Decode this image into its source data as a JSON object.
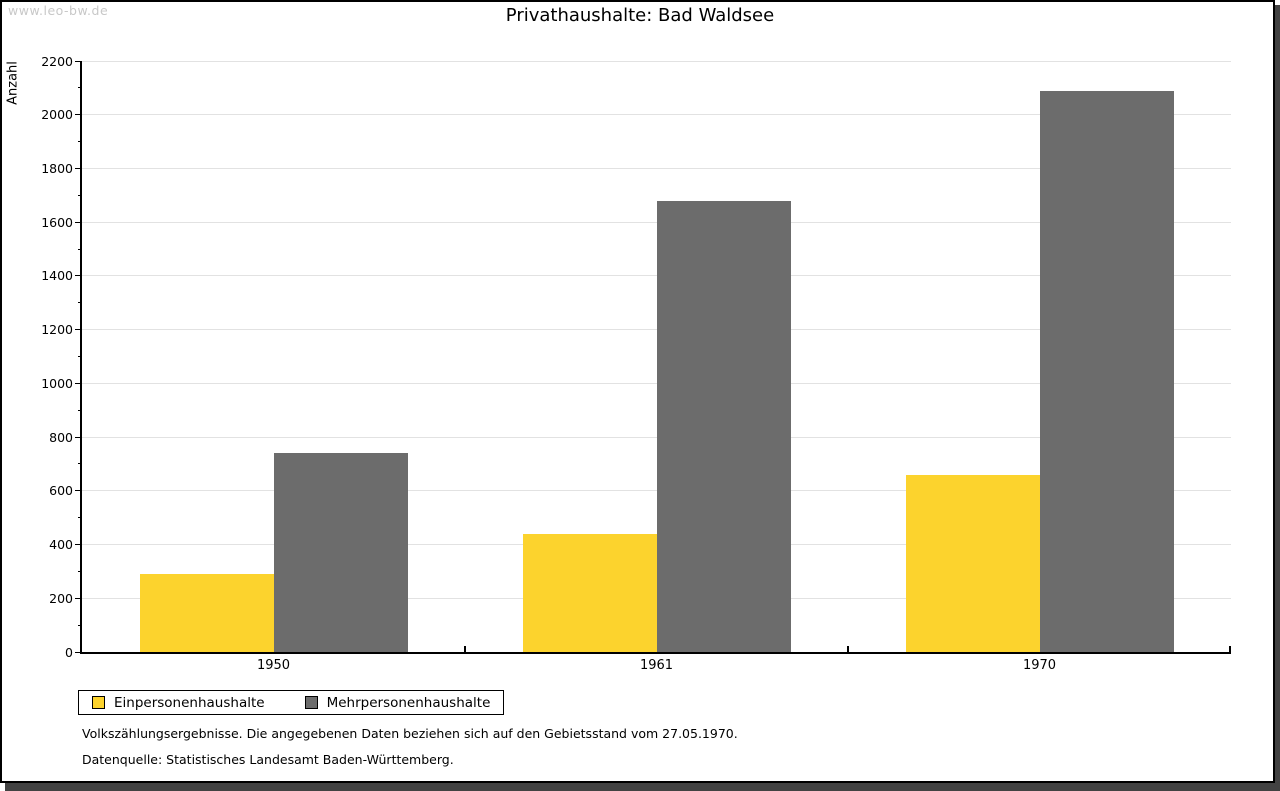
{
  "watermark": "www.leo-bw.de",
  "title": "Privathaushalte: Bad Waldsee",
  "y_axis_title": "Anzahl",
  "footer": {
    "line1": "Volkszählungsergebnisse. Die angegebenen Daten beziehen sich auf den Gebietsstand vom 27.05.1970.",
    "line2": "Datenquelle: Statistisches Landesamt Baden-Württemberg."
  },
  "colors": {
    "series1": "#FCD32D",
    "series2": "#6C6C6C",
    "gridline": "#E2E2E2",
    "axis": "#000000",
    "watermark": "#C8C8C8",
    "background": "#FFFFFF"
  },
  "chart_data": {
    "type": "bar",
    "title": "Privathaushalte: Bad Waldsee",
    "categories": [
      "1950",
      "1961",
      "1970"
    ],
    "series": [
      {
        "name": "Einpersonenhaushalte",
        "color": "#FCD32D",
        "values": [
          290,
          440,
          660
        ]
      },
      {
        "name": "Mehrpersonenhaushalte",
        "color": "#6C6C6C",
        "values": [
          740,
          1680,
          2090
        ]
      }
    ],
    "xlabel": "",
    "ylabel": "Anzahl",
    "ylim": [
      0,
      2200
    ],
    "y_major_step": 200,
    "y_minor_step": 100,
    "grid": true,
    "legend_position": "bottom-left"
  }
}
